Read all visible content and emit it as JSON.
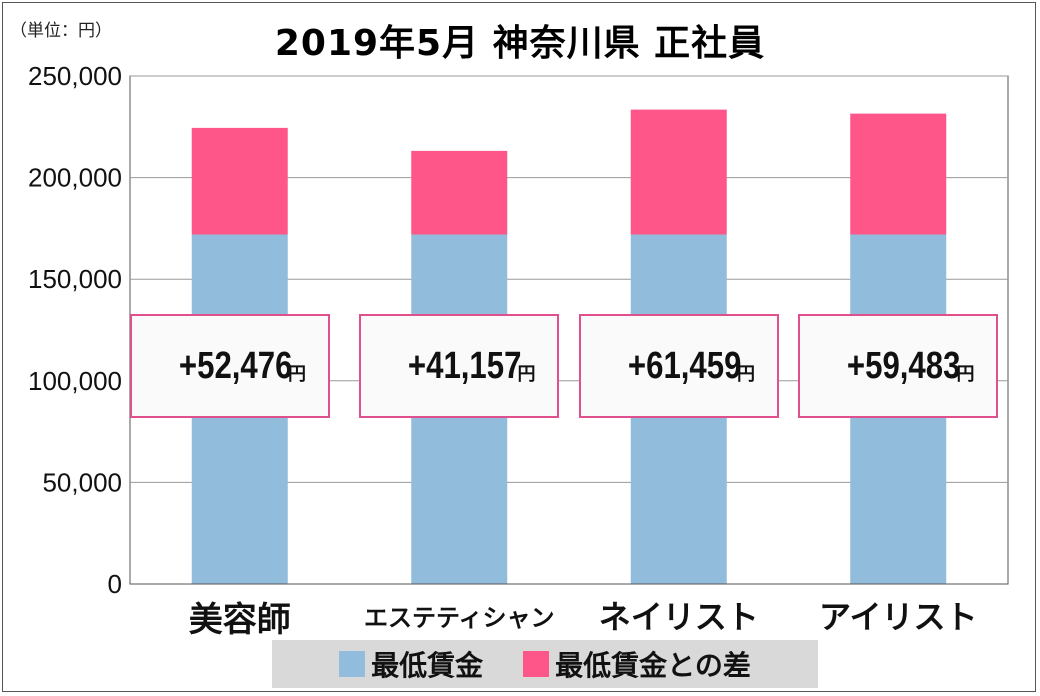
{
  "unit_label": "（単位：円）",
  "title": "2019年5月 神奈川県 正社員",
  "chart_data": {
    "type": "bar",
    "stacked": true,
    "categories": [
      "美容師",
      "エステティシャン",
      "ネイリスト",
      "アイリスト"
    ],
    "series": [
      {
        "name": "最低賃金",
        "values": [
          172000,
          172000,
          172000,
          172000
        ],
        "color": "#92bcdc"
      },
      {
        "name": "最低賃金との差",
        "values": [
          52476,
          41157,
          61459,
          59483
        ],
        "color": "#ff568a"
      }
    ],
    "ylim": [
      0,
      250000
    ],
    "yticks": [
      "0",
      "50,000",
      "100,000",
      "150,000",
      "200,000",
      "250,000"
    ],
    "grid": true,
    "legend_position": "bottom",
    "annotations": [
      "+52,476",
      "+41,157",
      "+61,459",
      "+59,483"
    ],
    "annotation_unit": "円"
  }
}
